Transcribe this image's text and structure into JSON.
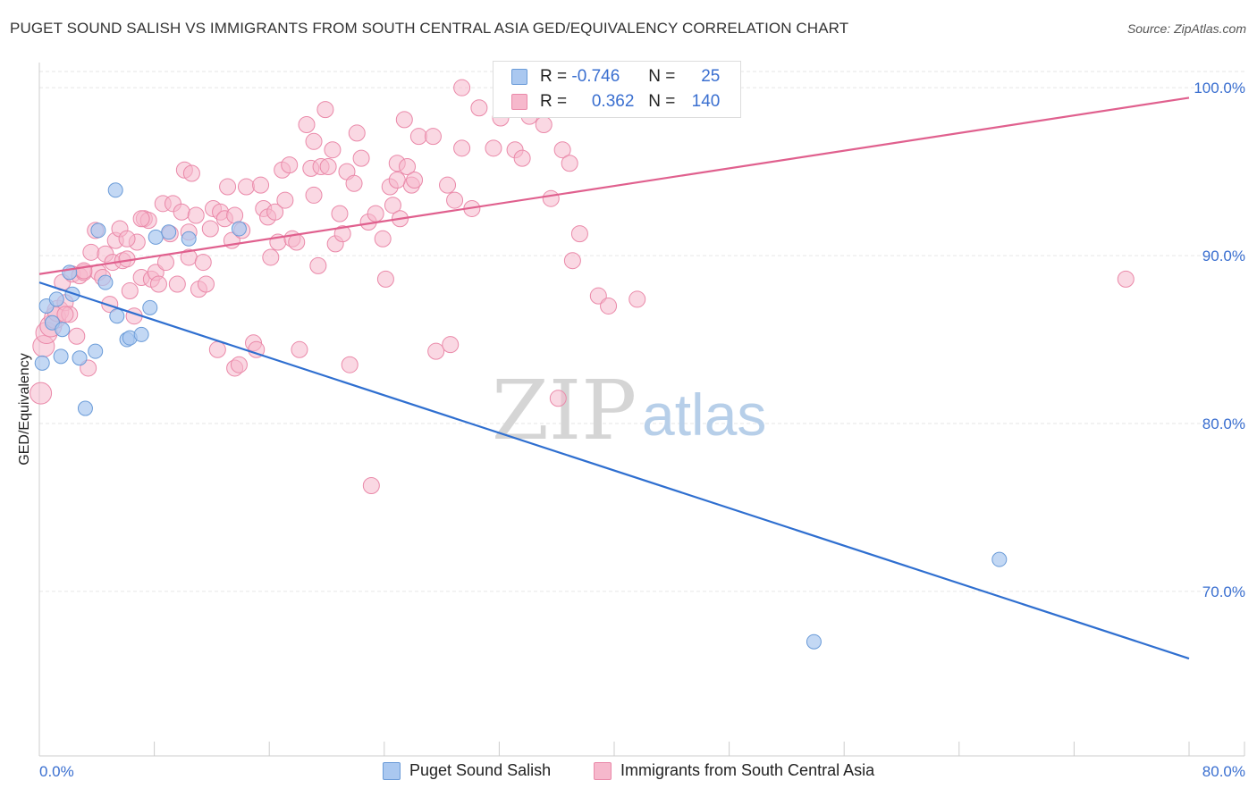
{
  "title": "PUGET SOUND SALISH VS IMMIGRANTS FROM SOUTH CENTRAL ASIA GED/EQUIVALENCY CORRELATION CHART",
  "source": "Source: ZipAtlas.com",
  "watermark": {
    "zip": "ZIP",
    "atlas": "atlas"
  },
  "legend_box": {
    "row1": {
      "r_label": "R =",
      "r_value": "-0.746",
      "n_label": "N =",
      "n_value": "25"
    },
    "row2": {
      "r_label": "R =",
      "r_value": "0.362",
      "n_label": "N =",
      "n_value": "140"
    }
  },
  "bottom_legend": {
    "series1": "Puget Sound Salish",
    "series2": "Immigrants from South Central Asia"
  },
  "colors": {
    "blue_fill": "#aac8f0",
    "blue_stroke": "#6a9bd8",
    "blue_line": "#2f6fd0",
    "pink_fill": "#f6b8cc",
    "pink_stroke": "#ea89a9",
    "pink_line": "#e0608e",
    "axis_text": "#3a6fd0",
    "grid": "#e6e6e6"
  },
  "chart_data": {
    "type": "scatter",
    "title": "PUGET SOUND SALISH VS IMMIGRANTS FROM SOUTH CENTRAL ASIA GED/EQUIVALENCY CORRELATION CHART",
    "xlabel": "",
    "ylabel": "GED/Equivalency",
    "xlim": [
      0,
      80
    ],
    "ylim": [
      60.2,
      101.5
    ],
    "x_tick_labels": [
      "0.0%",
      "80.0%"
    ],
    "y_ticks": [
      70,
      80,
      90,
      100
    ],
    "y_tick_labels": [
      "70.0%",
      "80.0%",
      "90.0%",
      "100.0%"
    ],
    "grid": true,
    "legend_placement": "top-center",
    "series": [
      {
        "name": "Puget Sound Salish",
        "color": "#aac8f0",
        "trend": {
          "x": [
            0,
            80
          ],
          "y": [
            88.4,
            66.0
          ]
        },
        "points": [
          [
            0.2,
            83.6
          ],
          [
            0.5,
            87.0
          ],
          [
            0.9,
            86.0
          ],
          [
            1.2,
            87.4
          ],
          [
            1.5,
            84.0
          ],
          [
            1.6,
            85.6
          ],
          [
            2.1,
            89.0
          ],
          [
            2.3,
            87.7
          ],
          [
            2.8,
            83.9
          ],
          [
            3.2,
            80.9
          ],
          [
            3.9,
            84.3
          ],
          [
            4.1,
            91.5
          ],
          [
            4.6,
            88.4
          ],
          [
            5.3,
            93.9
          ],
          [
            5.4,
            86.4
          ],
          [
            6.1,
            85.0
          ],
          [
            6.3,
            85.1
          ],
          [
            7.1,
            85.3
          ],
          [
            7.7,
            86.9
          ],
          [
            8.1,
            91.1
          ],
          [
            9.0,
            91.4
          ],
          [
            10.4,
            91.0
          ],
          [
            13.9,
            91.6
          ],
          [
            53.9,
            67.0
          ],
          [
            66.8,
            71.9
          ]
        ]
      },
      {
        "name": "Immigrants from South Central Asia",
        "color": "#f6b8cc",
        "trend": {
          "x": [
            0,
            80
          ],
          "y": [
            88.9,
            99.4
          ]
        },
        "points": [
          [
            0.1,
            81.8
          ],
          [
            0.3,
            84.6
          ],
          [
            0.5,
            85.4
          ],
          [
            0.8,
            85.8
          ],
          [
            1.1,
            86.3
          ],
          [
            1.3,
            86.7
          ],
          [
            1.6,
            88.4
          ],
          [
            1.8,
            87.2
          ],
          [
            2.1,
            86.5
          ],
          [
            2.3,
            88.9
          ],
          [
            2.6,
            85.2
          ],
          [
            2.8,
            88.8
          ],
          [
            3.1,
            89.0
          ],
          [
            3.4,
            83.3
          ],
          [
            3.6,
            90.2
          ],
          [
            3.9,
            91.5
          ],
          [
            4.1,
            89.0
          ],
          [
            4.4,
            88.7
          ],
          [
            4.6,
            90.1
          ],
          [
            4.9,
            87.1
          ],
          [
            5.1,
            89.6
          ],
          [
            5.3,
            90.9
          ],
          [
            5.6,
            91.6
          ],
          [
            5.8,
            89.7
          ],
          [
            6.1,
            89.8
          ],
          [
            6.3,
            87.9
          ],
          [
            6.6,
            86.4
          ],
          [
            6.8,
            90.8
          ],
          [
            7.1,
            88.7
          ],
          [
            7.3,
            92.2
          ],
          [
            7.6,
            92.1
          ],
          [
            7.8,
            88.6
          ],
          [
            8.1,
            89.0
          ],
          [
            8.3,
            88.3
          ],
          [
            8.6,
            93.1
          ],
          [
            8.8,
            89.6
          ],
          [
            9.1,
            91.3
          ],
          [
            9.3,
            93.1
          ],
          [
            9.6,
            88.3
          ],
          [
            9.9,
            92.6
          ],
          [
            10.1,
            95.1
          ],
          [
            10.4,
            89.9
          ],
          [
            10.6,
            94.9
          ],
          [
            10.9,
            92.4
          ],
          [
            11.1,
            88.0
          ],
          [
            11.4,
            89.6
          ],
          [
            11.6,
            88.3
          ],
          [
            11.9,
            91.6
          ],
          [
            12.1,
            92.8
          ],
          [
            12.4,
            84.4
          ],
          [
            12.6,
            92.6
          ],
          [
            12.9,
            92.2
          ],
          [
            13.1,
            94.1
          ],
          [
            13.4,
            90.9
          ],
          [
            13.6,
            83.3
          ],
          [
            13.9,
            83.5
          ],
          [
            14.1,
            91.5
          ],
          [
            14.4,
            94.1
          ],
          [
            14.9,
            84.8
          ],
          [
            15.1,
            84.4
          ],
          [
            15.4,
            94.2
          ],
          [
            15.6,
            92.8
          ],
          [
            15.9,
            92.3
          ],
          [
            16.1,
            89.9
          ],
          [
            16.4,
            92.6
          ],
          [
            16.6,
            90.8
          ],
          [
            16.9,
            95.1
          ],
          [
            17.1,
            93.3
          ],
          [
            17.4,
            95.4
          ],
          [
            17.6,
            91.0
          ],
          [
            17.9,
            90.8
          ],
          [
            18.1,
            84.4
          ],
          [
            18.6,
            97.8
          ],
          [
            18.9,
            95.2
          ],
          [
            19.1,
            93.6
          ],
          [
            19.4,
            89.4
          ],
          [
            19.6,
            95.3
          ],
          [
            19.9,
            98.7
          ],
          [
            20.1,
            95.3
          ],
          [
            20.4,
            96.3
          ],
          [
            20.6,
            90.7
          ],
          [
            20.9,
            92.5
          ],
          [
            21.1,
            91.3
          ],
          [
            21.4,
            95.0
          ],
          [
            21.6,
            83.5
          ],
          [
            21.9,
            94.3
          ],
          [
            22.1,
            97.3
          ],
          [
            22.4,
            95.8
          ],
          [
            22.9,
            92.0
          ],
          [
            23.1,
            76.3
          ],
          [
            23.4,
            92.5
          ],
          [
            23.9,
            91.0
          ],
          [
            24.1,
            88.6
          ],
          [
            24.4,
            94.1
          ],
          [
            24.6,
            93.0
          ],
          [
            24.9,
            95.5
          ],
          [
            25.1,
            92.2
          ],
          [
            25.4,
            98.1
          ],
          [
            25.6,
            95.3
          ],
          [
            25.9,
            94.2
          ],
          [
            26.1,
            94.5
          ],
          [
            26.4,
            97.1
          ],
          [
            27.4,
            97.1
          ],
          [
            27.6,
            84.3
          ],
          [
            28.4,
            94.2
          ],
          [
            28.6,
            84.7
          ],
          [
            28.9,
            93.3
          ],
          [
            29.4,
            96.4
          ],
          [
            30.1,
            92.8
          ],
          [
            30.6,
            98.8
          ],
          [
            31.6,
            96.4
          ],
          [
            32.1,
            98.2
          ],
          [
            33.1,
            96.3
          ],
          [
            33.6,
            95.8
          ],
          [
            34.1,
            98.3
          ],
          [
            35.1,
            97.8
          ],
          [
            35.6,
            93.4
          ],
          [
            36.1,
            81.5
          ],
          [
            36.4,
            96.3
          ],
          [
            36.9,
            95.5
          ],
          [
            37.1,
            89.7
          ],
          [
            37.6,
            91.3
          ],
          [
            38.9,
            87.6
          ],
          [
            39.6,
            87.0
          ],
          [
            41.6,
            87.4
          ],
          [
            29.4,
            100.0
          ],
          [
            10.4,
            91.4
          ],
          [
            7.1,
            92.2
          ],
          [
            75.6,
            88.6
          ],
          [
            3.1,
            89.1
          ],
          [
            1.8,
            86.5
          ],
          [
            6.1,
            91.0
          ],
          [
            13.6,
            92.4
          ],
          [
            19.1,
            96.8
          ],
          [
            24.9,
            94.5
          ]
        ]
      }
    ]
  }
}
